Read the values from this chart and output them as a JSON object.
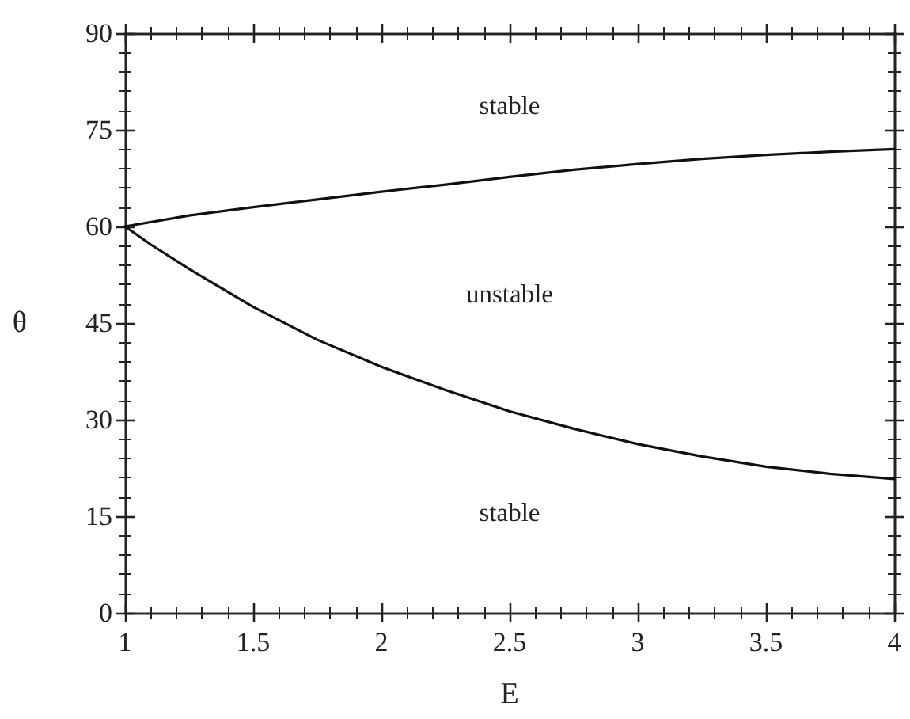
{
  "chart_data": {
    "type": "line",
    "xlabel": "E",
    "ylabel": "θ",
    "xlim": [
      1,
      4
    ],
    "xticks": [
      1,
      1.5,
      2,
      2.5,
      3,
      3.5,
      4
    ],
    "ylim": [
      0,
      90
    ],
    "yticks": [
      0,
      15,
      30,
      45,
      60,
      75,
      90
    ],
    "series": [
      {
        "color": "#111111",
        "x": [
          1,
          1.25,
          1.5,
          1.75,
          2,
          2.25,
          2.5,
          2.75,
          3,
          3.25,
          3.5,
          3.75,
          4
        ],
        "values": [
          60,
          61.7,
          63,
          64.2,
          65.4,
          66.5,
          67.7,
          68.8,
          69.7,
          70.5,
          71.1,
          71.6,
          72
        ]
      },
      {
        "color": "#111111",
        "x": [
          1,
          1.1,
          1.25,
          1.5,
          1.75,
          2,
          2.25,
          2.5,
          2.75,
          3,
          3.25,
          3.5,
          3.75,
          4
        ],
        "values": [
          60,
          57.2,
          53.4,
          47.5,
          42.4,
          38.2,
          34.6,
          31.3,
          28.6,
          26.2,
          24.3,
          22.7,
          21.6,
          20.8
        ]
      }
    ],
    "annotations": [
      "stable",
      "unstable",
      "stable"
    ]
  }
}
